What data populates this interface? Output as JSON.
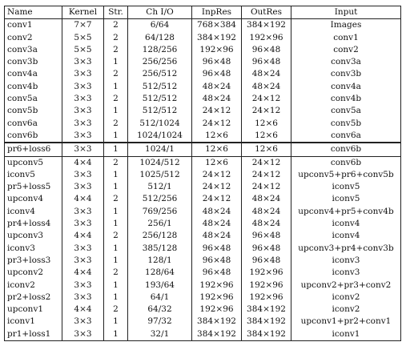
{
  "headers": [
    "Name",
    "Kernel",
    "Str.",
    "Ch I/O",
    "InpRes",
    "OutRes",
    "Input"
  ],
  "groups": [
    [
      [
        "conv1",
        "7×7",
        "2",
        "6/64",
        "768×384",
        "384×192",
        "Images"
      ],
      [
        "conv2",
        "5×5",
        "2",
        "64/128",
        "384×192",
        "192×96",
        "conv1"
      ],
      [
        "conv3a",
        "5×5",
        "2",
        "128/256",
        "192×96",
        "96×48",
        "conv2"
      ],
      [
        "conv3b",
        "3×3",
        "1",
        "256/256",
        "96×48",
        "96×48",
        "conv3a"
      ],
      [
        "conv4a",
        "3×3",
        "2",
        "256/512",
        "96×48",
        "48×24",
        "conv3b"
      ],
      [
        "conv4b",
        "3×3",
        "1",
        "512/512",
        "48×24",
        "48×24",
        "conv4a"
      ],
      [
        "conv5a",
        "3×3",
        "2",
        "512/512",
        "48×24",
        "24×12",
        "conv4b"
      ],
      [
        "conv5b",
        "3×3",
        "1",
        "512/512",
        "24×12",
        "24×12",
        "conv5a"
      ],
      [
        "conv6a",
        "3×3",
        "2",
        "512/1024",
        "24×12",
        "12×6",
        "conv5b"
      ],
      [
        "conv6b",
        "3×3",
        "1",
        "1024/1024",
        "12×6",
        "12×6",
        "conv6a"
      ]
    ],
    [
      [
        "pr6+loss6",
        "3×3",
        "1",
        "1024/1",
        "12×6",
        "12×6",
        "conv6b"
      ]
    ],
    [
      [
        "upconv5",
        "4×4",
        "2",
        "1024/512",
        "12×6",
        "24×12",
        "conv6b"
      ],
      [
        "iconv5",
        "3×3",
        "1",
        "1025/512",
        "24×12",
        "24×12",
        "upconv5+pr6+conv5b"
      ],
      [
        "pr5+loss5",
        "3×3",
        "1",
        "512/1",
        "24×12",
        "24×12",
        "iconv5"
      ],
      [
        "upconv4",
        "4×4",
        "2",
        "512/256",
        "24×12",
        "48×24",
        "iconv5"
      ],
      [
        "iconv4",
        "3×3",
        "1",
        "769/256",
        "48×24",
        "48×24",
        "upconv4+pr5+conv4b"
      ],
      [
        "pr4+loss4",
        "3×3",
        "1",
        "256/1",
        "48×24",
        "48×24",
        "iconv4"
      ],
      [
        "upconv3",
        "4×4",
        "2",
        "256/128",
        "48×24",
        "96×48",
        "iconv4"
      ],
      [
        "iconv3",
        "3×3",
        "1",
        "385/128",
        "96×48",
        "96×48",
        "upconv3+pr4+conv3b"
      ],
      [
        "pr3+loss3",
        "3×3",
        "1",
        "128/1",
        "96×48",
        "96×48",
        "iconv3"
      ],
      [
        "upconv2",
        "4×4",
        "2",
        "128/64",
        "96×48",
        "192×96",
        "iconv3"
      ],
      [
        "iconv2",
        "3×3",
        "1",
        "193/64",
        "192×96",
        "192×96",
        "upconv2+pr3+conv2"
      ],
      [
        "pr2+loss2",
        "3×3",
        "1",
        "64/1",
        "192×96",
        "192×96",
        "iconv2"
      ],
      [
        "upconv1",
        "4×4",
        "2",
        "64/32",
        "192×96",
        "384×192",
        "iconv2"
      ],
      [
        "iconv1",
        "3×3",
        "1",
        "97/32",
        "384×192",
        "384×192",
        "upconv1+pr2+conv1"
      ],
      [
        "pr1+loss1",
        "3×3",
        "1",
        "32/1",
        "384×192",
        "384×192",
        "iconv1"
      ]
    ]
  ]
}
